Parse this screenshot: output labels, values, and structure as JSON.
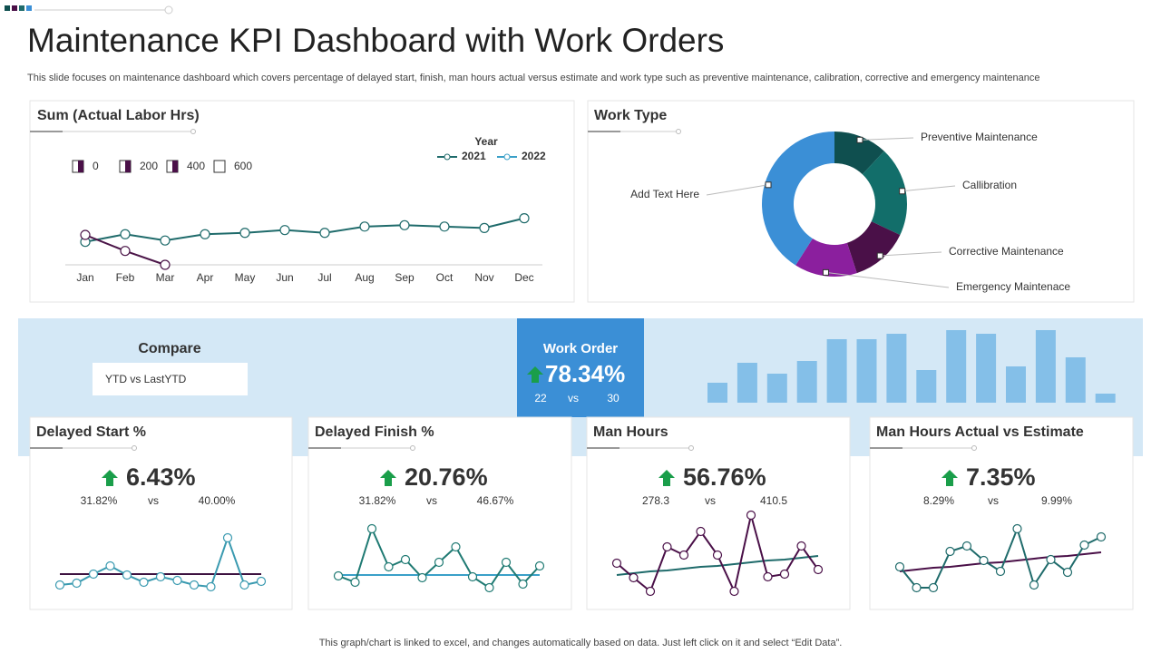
{
  "header": {
    "title": "Maintenance KPI Dashboard with Work Orders",
    "subtitle": "This slide focuses on maintenance dashboard which covers percentage of delayed start, finish, man hours actual versus estimate and work type such as preventive  maintenance, calibration, corrective and emergency maintenance"
  },
  "compare": {
    "title": "Compare",
    "option": "YTD vs LastYTD"
  },
  "work_order": {
    "title": "Work Order",
    "value": "78.34%",
    "left": "22",
    "vs": "vs",
    "right": "30"
  },
  "kpis": [
    {
      "value": "6.43%",
      "current": "31.82%",
      "vs": "vs",
      "target": "40.00%"
    },
    {
      "value": "20.76%",
      "current": "31.82%",
      "vs": "vs",
      "target": "46.67%"
    },
    {
      "value": "56.76%",
      "current": "278.3",
      "vs": "vs",
      "target": "410.5"
    },
    {
      "value": "7.35%",
      "current": "8.29%",
      "vs": "vs",
      "target": "9.99%"
    }
  ],
  "footer": "This graph/chart is linked to excel,  and changes automatically based on data. Just left click on it and select “Edit Data”.",
  "chart_data": [
    {
      "type": "line",
      "title": "Sum (Actual Labor Hrs)",
      "legend_title": "Year",
      "categories": [
        "Jan",
        "Feb",
        "Mar",
        "Apr",
        "May",
        "Jun",
        "Jul",
        "Aug",
        "Sep",
        "Oct",
        "Nov",
        "Dec"
      ],
      "series": [
        {
          "name": "2021",
          "color": "#1f6b6b",
          "legend_color": "#1f6b6b",
          "values": [
            165,
            220,
            175,
            220,
            230,
            250,
            230,
            275,
            285,
            275,
            265,
            335
          ]
        },
        {
          "name": "2022",
          "color": "#4b1548",
          "legend_color": "#3aa0c8",
          "values": [
            215,
            100,
            0,
            null,
            null,
            null,
            null,
            null,
            null,
            null,
            null,
            null
          ]
        }
      ],
      "ylim": [
        0,
        600
      ],
      "yticks": [
        0,
        200,
        400,
        600
      ]
    },
    {
      "type": "pie",
      "title": "Work Type",
      "donut": true,
      "categories": [
        "Preventive  Maintenance",
        "Callibration",
        "Corrective  Maintenance",
        "Emergency Maintenace",
        "Add Text Here"
      ],
      "values": [
        12,
        20,
        13,
        14,
        41
      ],
      "colors": [
        "#0f4f4f",
        "#126e6a",
        "#4a1048",
        "#8b1f9e",
        "#3b8fd6"
      ]
    },
    {
      "type": "bar",
      "color": "#84bfe8",
      "values": [
        22,
        44,
        32,
        46,
        70,
        70,
        76,
        36,
        80,
        76,
        40,
        80,
        50,
        10
      ]
    },
    {
      "type": "line",
      "title": "Delayed Start %",
      "series": [
        {
          "color": "#3a9ab0",
          "markers": true,
          "values": [
            15,
            17,
            27,
            36,
            26,
            18,
            24,
            20,
            15,
            13,
            67,
            15,
            19
          ]
        },
        {
          "color": "#3d1240",
          "markers": false,
          "values": [
            27,
            27,
            27,
            27,
            27,
            27,
            27,
            27,
            27,
            27,
            27,
            27,
            27
          ]
        }
      ]
    },
    {
      "type": "line",
      "title": "Delayed Finish %",
      "series": [
        {
          "color": "#1f7a73",
          "markers": true,
          "values": [
            25,
            18,
            77,
            35,
            43,
            23,
            40,
            57,
            24,
            12,
            40,
            16,
            36
          ]
        },
        {
          "color": "#3aa0c8",
          "markers": false,
          "values": [
            26,
            26,
            26,
            26,
            26,
            26,
            26,
            26,
            26,
            26,
            26,
            26,
            26
          ]
        }
      ]
    },
    {
      "type": "line",
      "title": "Man Hours",
      "series": [
        {
          "color": "#4a1048",
          "markers": true,
          "values": [
            39,
            23,
            8,
            57,
            48,
            74,
            48,
            8,
            92,
            24,
            27,
            58,
            32
          ]
        },
        {
          "color": "#1f6b6b",
          "markers": false,
          "values": [
            26,
            28,
            30,
            31,
            33,
            35,
            36,
            38,
            40,
            42,
            43,
            45,
            47
          ]
        }
      ]
    },
    {
      "type": "line",
      "title": "Man Hours Actual vs Estimate",
      "series": [
        {
          "color": "#1f6b6b",
          "markers": true,
          "values": [
            35,
            12,
            12,
            52,
            58,
            42,
            30,
            77,
            15,
            43,
            29,
            59,
            68
          ]
        },
        {
          "color": "#4a1048",
          "markers": false,
          "values": [
            30,
            32,
            34,
            35,
            37,
            39,
            40,
            42,
            44,
            46,
            47,
            49,
            51
          ]
        }
      ]
    }
  ]
}
